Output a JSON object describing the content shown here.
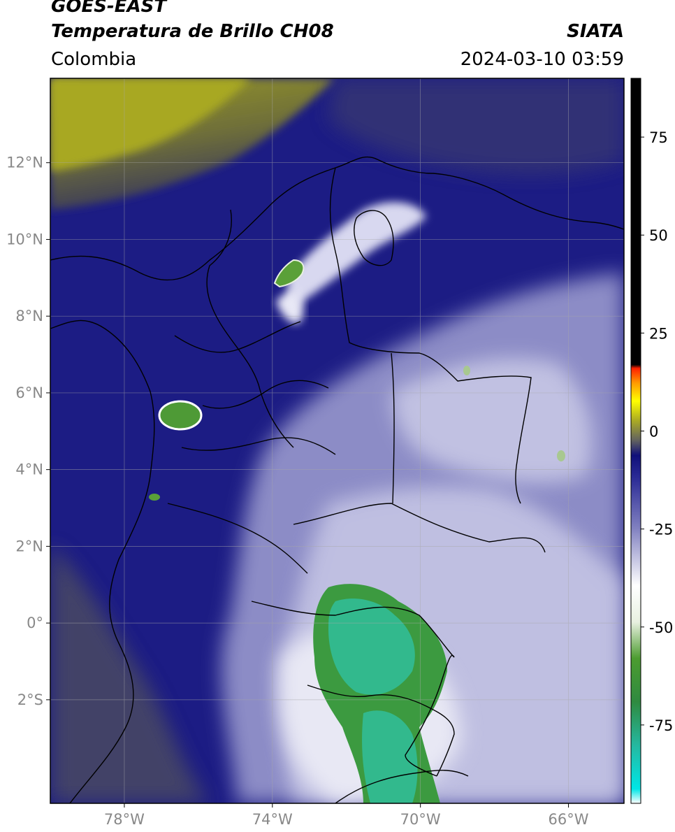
{
  "header": {
    "satellite": "GOES-EAST",
    "product": "Temperatura de Brillo CH08",
    "region": "Colombia",
    "organization": "SIATA",
    "timestamp": "2024-03-10 03:59"
  },
  "map": {
    "lon_range": [
      -80,
      -64.5
    ],
    "lat_range": [
      -4.7,
      14.2
    ],
    "lon_ticks": [
      {
        "value": -78,
        "label": "78°W"
      },
      {
        "value": -74,
        "label": "74°W"
      },
      {
        "value": -70,
        "label": "70°W"
      },
      {
        "value": -66,
        "label": "66°W"
      }
    ],
    "lat_ticks": [
      {
        "value": 12,
        "label": "12°N"
      },
      {
        "value": 10,
        "label": "10°N"
      },
      {
        "value": 8,
        "label": "8°N"
      },
      {
        "value": 6,
        "label": "6°N"
      },
      {
        "value": 4,
        "label": "4°N"
      },
      {
        "value": 2,
        "label": "2°N"
      },
      {
        "value": 0,
        "label": "0°"
      },
      {
        "value": -2,
        "label": "2°S"
      }
    ],
    "gridlines": true
  },
  "colorbar": {
    "range": [
      -95,
      90
    ],
    "ticks": [
      {
        "value": 75,
        "label": "75"
      },
      {
        "value": 50,
        "label": "50"
      },
      {
        "value": 25,
        "label": "25"
      },
      {
        "value": 0,
        "label": "0"
      },
      {
        "value": -25,
        "label": "-25"
      },
      {
        "value": -50,
        "label": "-50"
      },
      {
        "value": -75,
        "label": "-75"
      }
    ]
  },
  "colors": {
    "warm_yellow": "#a8a820",
    "mid_navy": "#1a1a80",
    "cool_lavender": "#9a9acc",
    "cold_white": "#f2f2f8",
    "deep_green": "#3e9a3a",
    "coldest_cyan": "#30c8a8"
  }
}
